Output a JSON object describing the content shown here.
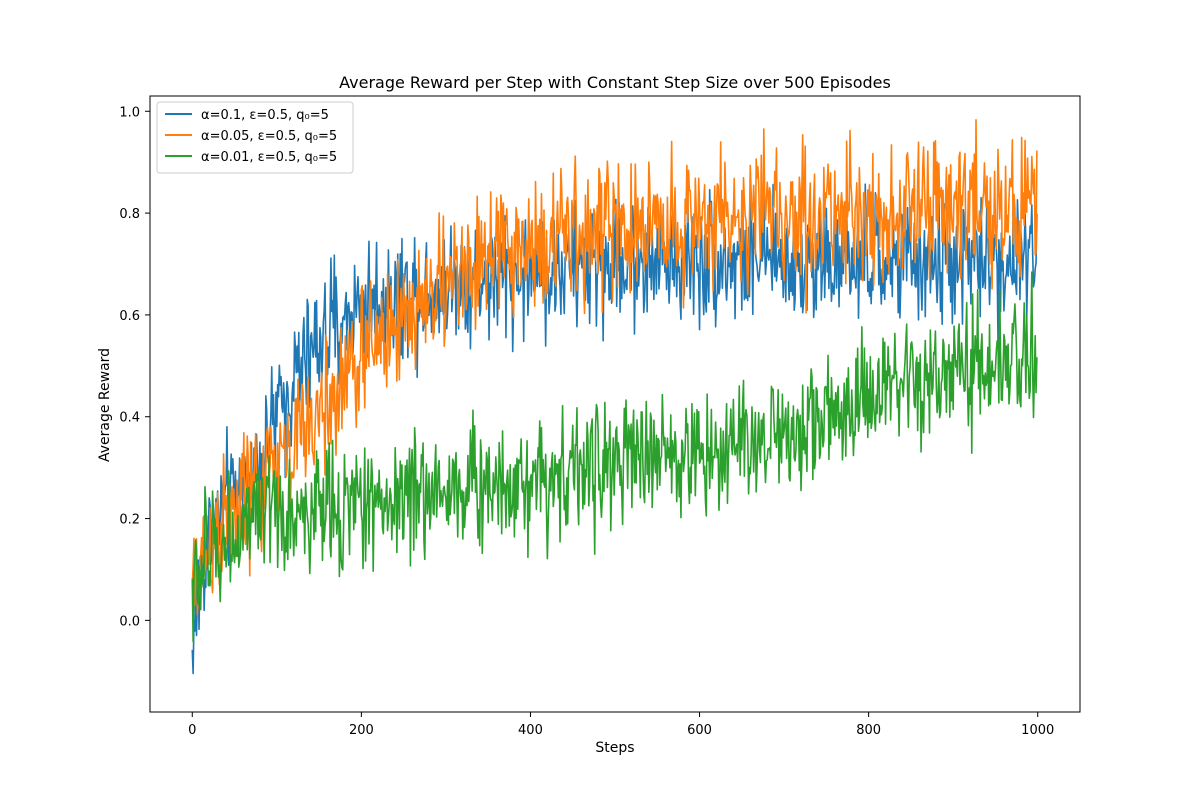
{
  "chart_data": {
    "type": "line",
    "title": "Average Reward per Step with Constant Step Size over 500 Episodes",
    "xlabel": "Steps",
    "ylabel": "Average Reward",
    "xlim": [
      -50,
      1050
    ],
    "ylim": [
      -0.18,
      1.03
    ],
    "xticks": [
      0,
      200,
      400,
      600,
      800,
      1000
    ],
    "xtick_labels": [
      "0",
      "200",
      "400",
      "600",
      "800",
      "1000"
    ],
    "yticks": [
      0.0,
      0.2,
      0.4,
      0.6,
      0.8,
      1.0
    ],
    "ytick_labels": [
      "0.0",
      "0.2",
      "0.4",
      "0.6",
      "0.8",
      "1.0"
    ],
    "grid": false,
    "legend_position": "upper-left",
    "n_points": 1000,
    "series": [
      {
        "name": "α=0.1, ε=0.5, q₀=5",
        "color": "#1f77b4",
        "anchors": [
          [
            0,
            -0.06
          ],
          [
            5,
            0.02
          ],
          [
            10,
            0.08
          ],
          [
            20,
            0.18
          ],
          [
            40,
            0.22
          ],
          [
            60,
            0.26
          ],
          [
            80,
            0.32
          ],
          [
            100,
            0.4
          ],
          [
            120,
            0.47
          ],
          [
            150,
            0.55
          ],
          [
            200,
            0.62
          ],
          [
            250,
            0.64
          ],
          [
            300,
            0.66
          ],
          [
            400,
            0.68
          ],
          [
            500,
            0.7
          ],
          [
            600,
            0.71
          ],
          [
            800,
            0.7
          ],
          [
            1000,
            0.71
          ]
        ],
        "noise": 0.06
      },
      {
        "name": "α=0.05, ε=0.5, q₀=5",
        "color": "#ff7f0e",
        "anchors": [
          [
            0,
            0.05
          ],
          [
            10,
            0.12
          ],
          [
            20,
            0.16
          ],
          [
            50,
            0.21
          ],
          [
            80,
            0.27
          ],
          [
            100,
            0.31
          ],
          [
            150,
            0.4
          ],
          [
            200,
            0.52
          ],
          [
            250,
            0.6
          ],
          [
            300,
            0.66
          ],
          [
            350,
            0.71
          ],
          [
            400,
            0.74
          ],
          [
            500,
            0.77
          ],
          [
            600,
            0.79
          ],
          [
            800,
            0.8
          ],
          [
            1000,
            0.82
          ]
        ],
        "noise": 0.065
      },
      {
        "name": "α=0.01, ε=0.5, q₀=5",
        "color": "#2ca02c",
        "anchors": [
          [
            0,
            0.05
          ],
          [
            10,
            0.1
          ],
          [
            30,
            0.15
          ],
          [
            60,
            0.18
          ],
          [
            100,
            0.2
          ],
          [
            200,
            0.23
          ],
          [
            300,
            0.26
          ],
          [
            400,
            0.28
          ],
          [
            500,
            0.31
          ],
          [
            600,
            0.33
          ],
          [
            700,
            0.37
          ],
          [
            800,
            0.43
          ],
          [
            900,
            0.48
          ],
          [
            1000,
            0.52
          ]
        ],
        "noise": 0.06
      }
    ]
  }
}
